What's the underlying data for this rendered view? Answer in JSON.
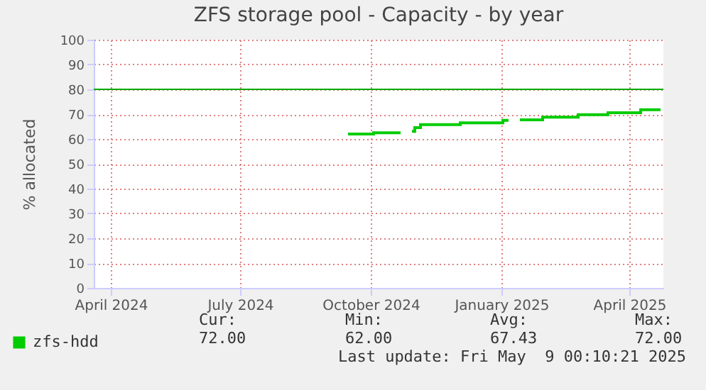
{
  "chart_data": {
    "type": "step",
    "title": "ZFS storage pool - Capacity - by year",
    "ylabel": "% allocated",
    "x": [
      "2024-09-15",
      "2024-10-03",
      "2024-10-22",
      "2024-10-26",
      "2024-10-30",
      "2024-11-01",
      "2024-11-05",
      "2024-12-03",
      "2025-01-02",
      "2025-01-06",
      "2025-01-10",
      "2025-01-14",
      "2025-01-30",
      "2025-02-24",
      "2025-03-17",
      "2025-04-09",
      "2025-04-23"
    ],
    "series": [
      {
        "name": "zfs-hdd",
        "color": "#00cc00",
        "values": [
          62,
          62.5,
          62.5,
          null,
          63.1,
          64.6,
          65.8,
          66.5,
          67.5,
          67.5,
          null,
          67.7,
          68.8,
          69.8,
          70.6,
          71.8,
          71.8
        ]
      }
    ],
    "xlim": [
      "2024-03-20",
      "2025-04-25"
    ],
    "xticks": [
      {
        "value": "2024-04-01",
        "label": "April 2024"
      },
      {
        "value": "2024-07-01",
        "label": "July 2024"
      },
      {
        "value": "2024-10-01",
        "label": "October 2024"
      },
      {
        "value": "2025-01-01",
        "label": "January 2025"
      },
      {
        "value": "2025-04-01",
        "label": "April 2025"
      }
    ],
    "ylim": [
      0,
      100
    ],
    "yticks": [
      0,
      10,
      20,
      30,
      40,
      50,
      60,
      70,
      80,
      90,
      100
    ],
    "ref_lines": [
      {
        "axis": "y",
        "value": 80,
        "color": "#00aa00"
      }
    ],
    "grid": true,
    "legend": "bottom left",
    "annotations": [
      "Cur:",
      "72.00",
      "Min:",
      "62.00",
      "Avg:",
      "67.43",
      "Max:",
      "72.00",
      "Last update: Fri May  9 00:10:21 2025"
    ]
  }
}
